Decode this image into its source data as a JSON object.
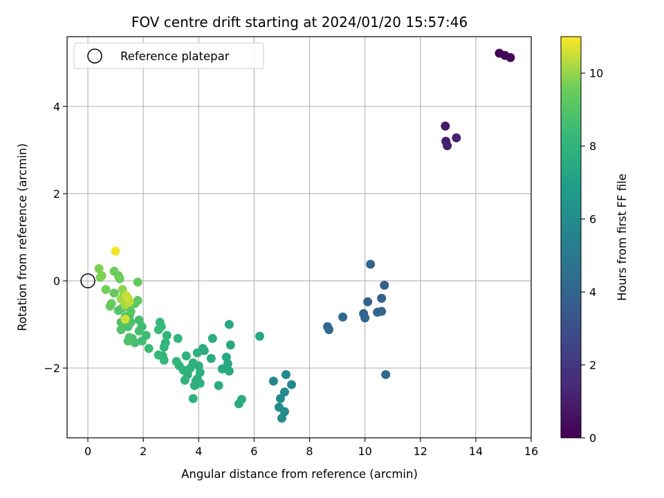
{
  "chart_data": {
    "type": "scatter",
    "title": "FOV centre drift starting at 2024/01/20 15:57:46",
    "xlabel": "Angular distance from reference (arcmin)",
    "ylabel": "Rotation from reference (arcmin)",
    "xlim": [
      -0.75,
      16
    ],
    "ylim": [
      -3.6,
      5.6
    ],
    "xticks": [
      0,
      2,
      4,
      6,
      8,
      10,
      12,
      14,
      16
    ],
    "yticks": [
      -2,
      0,
      2,
      4
    ],
    "xtick_labels": [
      "0",
      "2",
      "4",
      "6",
      "8",
      "10",
      "12",
      "14",
      "16"
    ],
    "ytick_labels": [
      "−2",
      "0",
      "2",
      "4"
    ],
    "grid": true,
    "legend": {
      "placement": "top-left",
      "label": "Reference platepar"
    },
    "colorbar": {
      "label": "Hours from first FF file",
      "range": [
        0,
        11
      ],
      "ticks": [
        0,
        2,
        4,
        6,
        8,
        10
      ],
      "tick_labels": [
        "0",
        "2",
        "4",
        "6",
        "8",
        "10"
      ],
      "colormap": "viridis"
    },
    "reference_point": {
      "x": 0,
      "y": 0
    },
    "series": [
      {
        "points": [
          {
            "x": 14.85,
            "y": 5.22,
            "c": 0.1
          },
          {
            "x": 15.05,
            "y": 5.17,
            "c": 0.2
          },
          {
            "x": 15.25,
            "y": 5.12,
            "c": 0.3
          },
          {
            "x": 12.9,
            "y": 3.55,
            "c": 0.9
          },
          {
            "x": 12.92,
            "y": 3.2,
            "c": 1.0
          },
          {
            "x": 12.97,
            "y": 3.1,
            "c": 1.1
          },
          {
            "x": 13.3,
            "y": 3.28,
            "c": 1.2
          },
          {
            "x": 10.2,
            "y": 0.38,
            "c": 3.9
          },
          {
            "x": 10.7,
            "y": -0.1,
            "c": 3.8
          },
          {
            "x": 10.6,
            "y": -0.4,
            "c": 3.85
          },
          {
            "x": 10.1,
            "y": -0.48,
            "c": 3.9
          },
          {
            "x": 9.95,
            "y": -0.75,
            "c": 3.95
          },
          {
            "x": 10.0,
            "y": -0.85,
            "c": 4.0
          },
          {
            "x": 10.45,
            "y": -0.72,
            "c": 4.0
          },
          {
            "x": 10.6,
            "y": -0.7,
            "c": 4.05
          },
          {
            "x": 9.2,
            "y": -0.83,
            "c": 4.1
          },
          {
            "x": 8.65,
            "y": -1.05,
            "c": 4.2
          },
          {
            "x": 8.7,
            "y": -1.12,
            "c": 4.25
          },
          {
            "x": 10.75,
            "y": -2.15,
            "c": 4.3
          },
          {
            "x": 6.7,
            "y": -2.3,
            "c": 5.7
          },
          {
            "x": 7.15,
            "y": -2.15,
            "c": 5.8
          },
          {
            "x": 7.35,
            "y": -2.38,
            "c": 5.85
          },
          {
            "x": 7.1,
            "y": -2.55,
            "c": 5.9
          },
          {
            "x": 6.95,
            "y": -2.7,
            "c": 5.95
          },
          {
            "x": 6.9,
            "y": -2.9,
            "c": 6.0
          },
          {
            "x": 7.1,
            "y": -3.0,
            "c": 6.05
          },
          {
            "x": 7.0,
            "y": -3.15,
            "c": 6.1
          },
          {
            "x": 6.2,
            "y": -1.27,
            "c": 7.3
          },
          {
            "x": 5.1,
            "y": -1.0,
            "c": 7.4
          },
          {
            "x": 5.15,
            "y": -1.47,
            "c": 7.45
          },
          {
            "x": 5.0,
            "y": -1.75,
            "c": 7.5
          },
          {
            "x": 5.05,
            "y": -1.9,
            "c": 7.5
          },
          {
            "x": 5.1,
            "y": -2.07,
            "c": 7.55
          },
          {
            "x": 4.85,
            "y": -2.02,
            "c": 7.55
          },
          {
            "x": 4.5,
            "y": -1.32,
            "c": 7.6
          },
          {
            "x": 4.45,
            "y": -1.78,
            "c": 7.6
          },
          {
            "x": 4.72,
            "y": -2.4,
            "c": 7.65
          },
          {
            "x": 5.55,
            "y": -2.72,
            "c": 7.65
          },
          {
            "x": 5.45,
            "y": -2.82,
            "c": 7.7
          },
          {
            "x": 4.15,
            "y": -1.55,
            "c": 7.75
          },
          {
            "x": 4.2,
            "y": -1.6,
            "c": 7.75
          },
          {
            "x": 3.95,
            "y": -1.65,
            "c": 7.8
          },
          {
            "x": 4.0,
            "y": -1.95,
            "c": 7.8
          },
          {
            "x": 4.05,
            "y": -2.1,
            "c": 7.85
          },
          {
            "x": 3.95,
            "y": -2.25,
            "c": 7.85
          },
          {
            "x": 4.05,
            "y": -2.35,
            "c": 7.9
          },
          {
            "x": 3.85,
            "y": -2.4,
            "c": 7.9
          },
          {
            "x": 3.9,
            "y": -2.3,
            "c": 7.9
          },
          {
            "x": 3.8,
            "y": -2.7,
            "c": 7.95
          },
          {
            "x": 3.8,
            "y": -1.88,
            "c": 7.95
          },
          {
            "x": 3.7,
            "y": -2.0,
            "c": 7.95
          },
          {
            "x": 3.55,
            "y": -1.72,
            "c": 8.0
          },
          {
            "x": 3.6,
            "y": -2.15,
            "c": 8.0
          },
          {
            "x": 3.5,
            "y": -2.28,
            "c": 8.0
          },
          {
            "x": 3.45,
            "y": -2.05,
            "c": 8.05
          },
          {
            "x": 3.3,
            "y": -1.95,
            "c": 8.05
          },
          {
            "x": 3.2,
            "y": -1.85,
            "c": 8.1
          },
          {
            "x": 3.25,
            "y": -1.32,
            "c": 8.1
          },
          {
            "x": 2.85,
            "y": -1.25,
            "c": 8.15
          },
          {
            "x": 2.8,
            "y": -1.42,
            "c": 8.15
          },
          {
            "x": 2.75,
            "y": -1.52,
            "c": 8.2
          },
          {
            "x": 2.7,
            "y": -1.72,
            "c": 8.2
          },
          {
            "x": 2.75,
            "y": -1.82,
            "c": 8.2
          },
          {
            "x": 2.55,
            "y": -1.7,
            "c": 8.25
          },
          {
            "x": 2.6,
            "y": -0.95,
            "c": 8.3
          },
          {
            "x": 2.65,
            "y": -1.05,
            "c": 8.3
          },
          {
            "x": 2.55,
            "y": -1.12,
            "c": 8.35
          },
          {
            "x": 2.2,
            "y": -1.55,
            "c": 8.4
          },
          {
            "x": 2.1,
            "y": -1.25,
            "c": 8.45
          },
          {
            "x": 1.95,
            "y": -1.38,
            "c": 8.5
          },
          {
            "x": 1.95,
            "y": -1.05,
            "c": 8.55
          },
          {
            "x": 1.85,
            "y": -0.9,
            "c": 8.6
          },
          {
            "x": 1.85,
            "y": -1.15,
            "c": 8.6
          },
          {
            "x": 1.7,
            "y": -1.42,
            "c": 8.65
          },
          {
            "x": 1.6,
            "y": -1.32,
            "c": 8.7
          },
          {
            "x": 1.55,
            "y": -0.95,
            "c": 8.75
          },
          {
            "x": 1.45,
            "y": -1.05,
            "c": 8.8
          },
          {
            "x": 1.5,
            "y": -1.3,
            "c": 8.8
          },
          {
            "x": 1.5,
            "y": -0.8,
            "c": 8.85
          },
          {
            "x": 1.45,
            "y": -1.38,
            "c": 8.85
          },
          {
            "x": 1.35,
            "y": -0.82,
            "c": 8.9
          },
          {
            "x": 1.2,
            "y": -0.95,
            "c": 8.9
          },
          {
            "x": 1.2,
            "y": -1.12,
            "c": 8.95
          },
          {
            "x": 1.1,
            "y": -0.68,
            "c": 9.0
          },
          {
            "x": 1.25,
            "y": -0.62,
            "c": 9.05
          },
          {
            "x": 1.4,
            "y": -0.58,
            "c": 9.1
          },
          {
            "x": 1.55,
            "y": -0.7,
            "c": 9.15
          },
          {
            "x": 1.7,
            "y": -0.52,
            "c": 9.2
          },
          {
            "x": 1.8,
            "y": -0.45,
            "c": 9.25
          },
          {
            "x": 1.8,
            "y": -0.03,
            "c": 9.3
          },
          {
            "x": 0.95,
            "y": -0.28,
            "c": 9.35
          },
          {
            "x": 0.85,
            "y": -0.52,
            "c": 9.4
          },
          {
            "x": 0.8,
            "y": -0.58,
            "c": 9.45
          },
          {
            "x": 0.95,
            "y": 0.22,
            "c": 9.5
          },
          {
            "x": 1.1,
            "y": 0.12,
            "c": 9.55
          },
          {
            "x": 1.15,
            "y": 0.05,
            "c": 9.6
          },
          {
            "x": 0.65,
            "y": -0.2,
            "c": 9.65
          },
          {
            "x": 0.45,
            "y": 0.08,
            "c": 9.7
          },
          {
            "x": 0.4,
            "y": 0.28,
            "c": 9.75
          },
          {
            "x": 0.5,
            "y": 0.12,
            "c": 9.8
          },
          {
            "x": 1.25,
            "y": -0.2,
            "c": 9.9
          },
          {
            "x": 1.3,
            "y": -0.3,
            "c": 10.0
          },
          {
            "x": 1.2,
            "y": -0.42,
            "c": 10.1
          },
          {
            "x": 1.35,
            "y": -0.55,
            "c": 10.2
          },
          {
            "x": 1.45,
            "y": -0.4,
            "c": 10.3
          },
          {
            "x": 1.5,
            "y": -0.48,
            "c": 10.4
          },
          {
            "x": 1.4,
            "y": -0.35,
            "c": 10.5
          },
          {
            "x": 1.35,
            "y": -0.88,
            "c": 10.6
          },
          {
            "x": 1.0,
            "y": 0.68,
            "c": 10.9
          }
        ]
      }
    ]
  }
}
